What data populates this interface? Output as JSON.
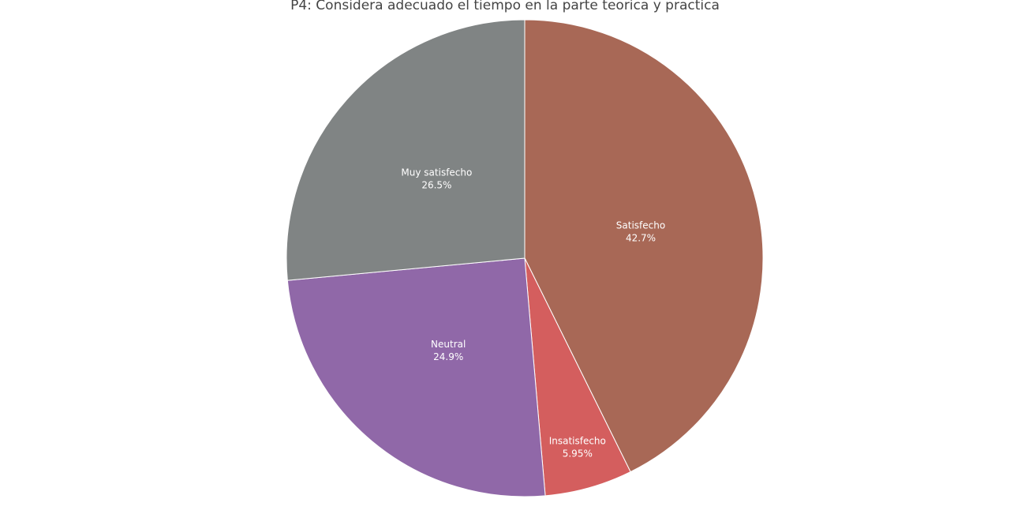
{
  "chart_data": {
    "type": "pie",
    "title": "P4: Considera adecuado el tiempo en la parte teorica y practica",
    "slices": [
      {
        "label": "Satisfecho",
        "value": 42.7,
        "percent_text": "42.7%",
        "color": "#a86856"
      },
      {
        "label": "Insatisfecho",
        "value": 5.95,
        "percent_text": "5.95%",
        "color": "#d45e5e"
      },
      {
        "label": "Neutral",
        "value": 24.9,
        "percent_text": "24.9%",
        "color": "#9068a8"
      },
      {
        "label": "Muy satisfecho",
        "value": 26.5,
        "percent_text": "26.5%",
        "color": "#808484"
      }
    ],
    "direction": "clockwise",
    "start": "top",
    "legend": "none"
  }
}
